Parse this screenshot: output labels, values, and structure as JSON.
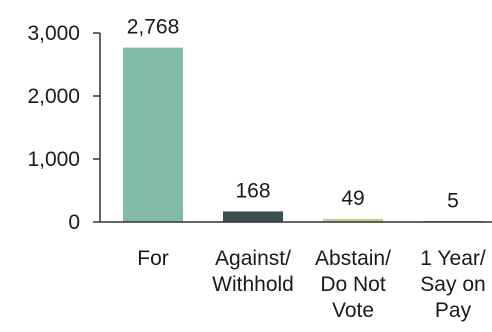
{
  "chart_data": {
    "type": "bar",
    "categories": [
      [
        "For"
      ],
      [
        "Against/",
        "Withhold"
      ],
      [
        "Abstain/",
        "Do Not",
        "Vote"
      ],
      [
        "1 Year/",
        "Say on",
        "Pay"
      ]
    ],
    "values": [
      2768,
      168,
      49,
      5
    ],
    "value_labels": [
      "2,768",
      "168",
      "49",
      "5"
    ],
    "colors": [
      "#80bca8",
      "#3d4f51",
      "#cdc98f",
      "#3d4f51"
    ],
    "yticks": [
      0,
      1000,
      2000,
      3000
    ],
    "ytick_labels": [
      "0",
      "1,000",
      "2,000",
      "3,000"
    ],
    "ylim": [
      0,
      3000
    ],
    "grid": false,
    "legend": "none"
  }
}
